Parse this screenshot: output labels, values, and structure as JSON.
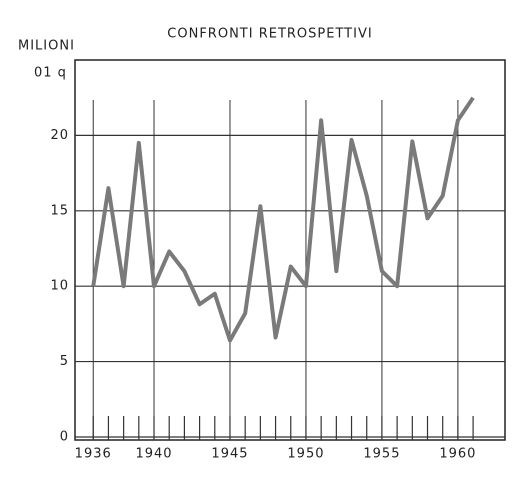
{
  "chart_data": {
    "type": "line",
    "title": "CONFRONTI RETROSPETTIVI",
    "y_label": "MILIONI",
    "y_unit": "01 q",
    "x": [
      1936,
      1937,
      1938,
      1939,
      1940,
      1941,
      1942,
      1943,
      1944,
      1945,
      1946,
      1947,
      1948,
      1949,
      1950,
      1951,
      1952,
      1953,
      1954,
      1955,
      1956,
      1957,
      1958,
      1959,
      1960,
      1961
    ],
    "series": [
      {
        "color": "#7a7a7a",
        "values": [
          10,
          16.5,
          10,
          19.5,
          10,
          12.3,
          11,
          8.8,
          9.5,
          6.4,
          8.2,
          15.3,
          6.6,
          11.3,
          10,
          21,
          11,
          19.7,
          16,
          11,
          10,
          19.6,
          14.5,
          16,
          21,
          22.5
        ]
      }
    ],
    "xlim": [
      1934.8,
      1963.1
    ],
    "xticks": [
      1936,
      1940,
      1945,
      1950,
      1955,
      1960
    ],
    "ylim": [
      -0.2,
      25
    ],
    "yticks": [
      0,
      5,
      10,
      15,
      20
    ],
    "grid": true
  }
}
